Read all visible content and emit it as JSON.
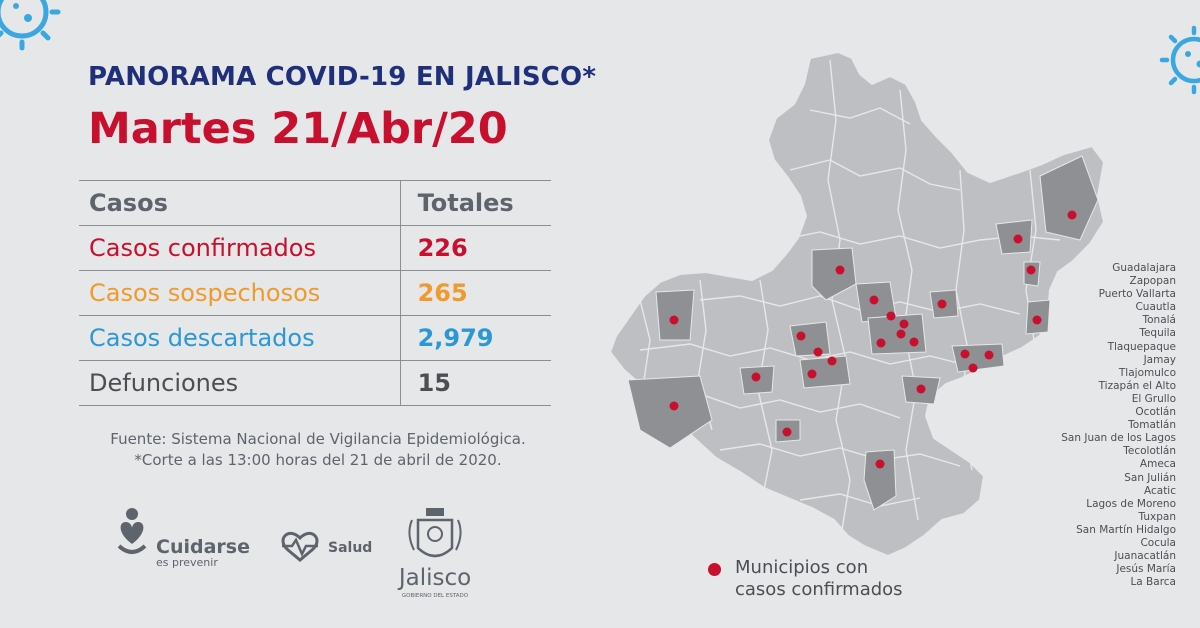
{
  "header": {
    "title_part1": "PANORAMA ",
    "title_part2": "COVID-19",
    "title_part3": " EN JALISCO*",
    "date": "Martes 21/Abr/20"
  },
  "table": {
    "col_casos": "Casos",
    "col_totales": "Totales",
    "rows": [
      {
        "label": "Casos confirmados",
        "value": "226"
      },
      {
        "label": "Casos sospechosos",
        "value": "265"
      },
      {
        "label": "Casos descartados",
        "value": "2,979"
      },
      {
        "label": "Defunciones",
        "value": "15"
      }
    ]
  },
  "source": {
    "line1": "Fuente: Sistema Nacional de Vigilancia Epidemiológica.",
    "line2": "*Corte a las 13:00 horas del 21 de abril de 2020."
  },
  "logos": {
    "cuidarse": "Cuidarse",
    "cuidarse_sub": "es prevenir",
    "salud": "Salud",
    "jalisco": "Jalisco",
    "jalisco_sub": "GOBIERNO DEL ESTADO"
  },
  "legend": {
    "line1": "Municipios con",
    "line2": "casos confirmados"
  },
  "municipios": [
    "Guadalajara",
    "Zapopan",
    "Puerto Vallarta",
    "Cuautla",
    "Tonalá",
    "Tequila",
    "Tlaquepaque",
    "Jamay",
    "Tlajomulco",
    "Tizapán el Alto",
    "El Grullo",
    "Ocotlán",
    "Tomatlán",
    "San Juan de los Lagos",
    "Tecolotlán",
    "Ameca",
    "San Julián",
    "Acatic",
    "Lagos de Moreno",
    "Tuxpan",
    "San Martín Hidalgo",
    "Cocula",
    "Juanacatlán",
    "Jesús María",
    "La Barca"
  ],
  "colors": {
    "navy": "#1f2f7a",
    "red": "#c8102e",
    "orange": "#f09a2b",
    "blue": "#2a98d4",
    "gray_text": "#4b4f54",
    "map_light": "#bdbfc2",
    "map_dark": "#8e9094",
    "virus_blue": "#3ba7e0"
  },
  "icons": [
    "virus-icon",
    "cuidarse-logo-icon",
    "salud-logo-icon",
    "jalisco-coat-of-arms-icon"
  ]
}
